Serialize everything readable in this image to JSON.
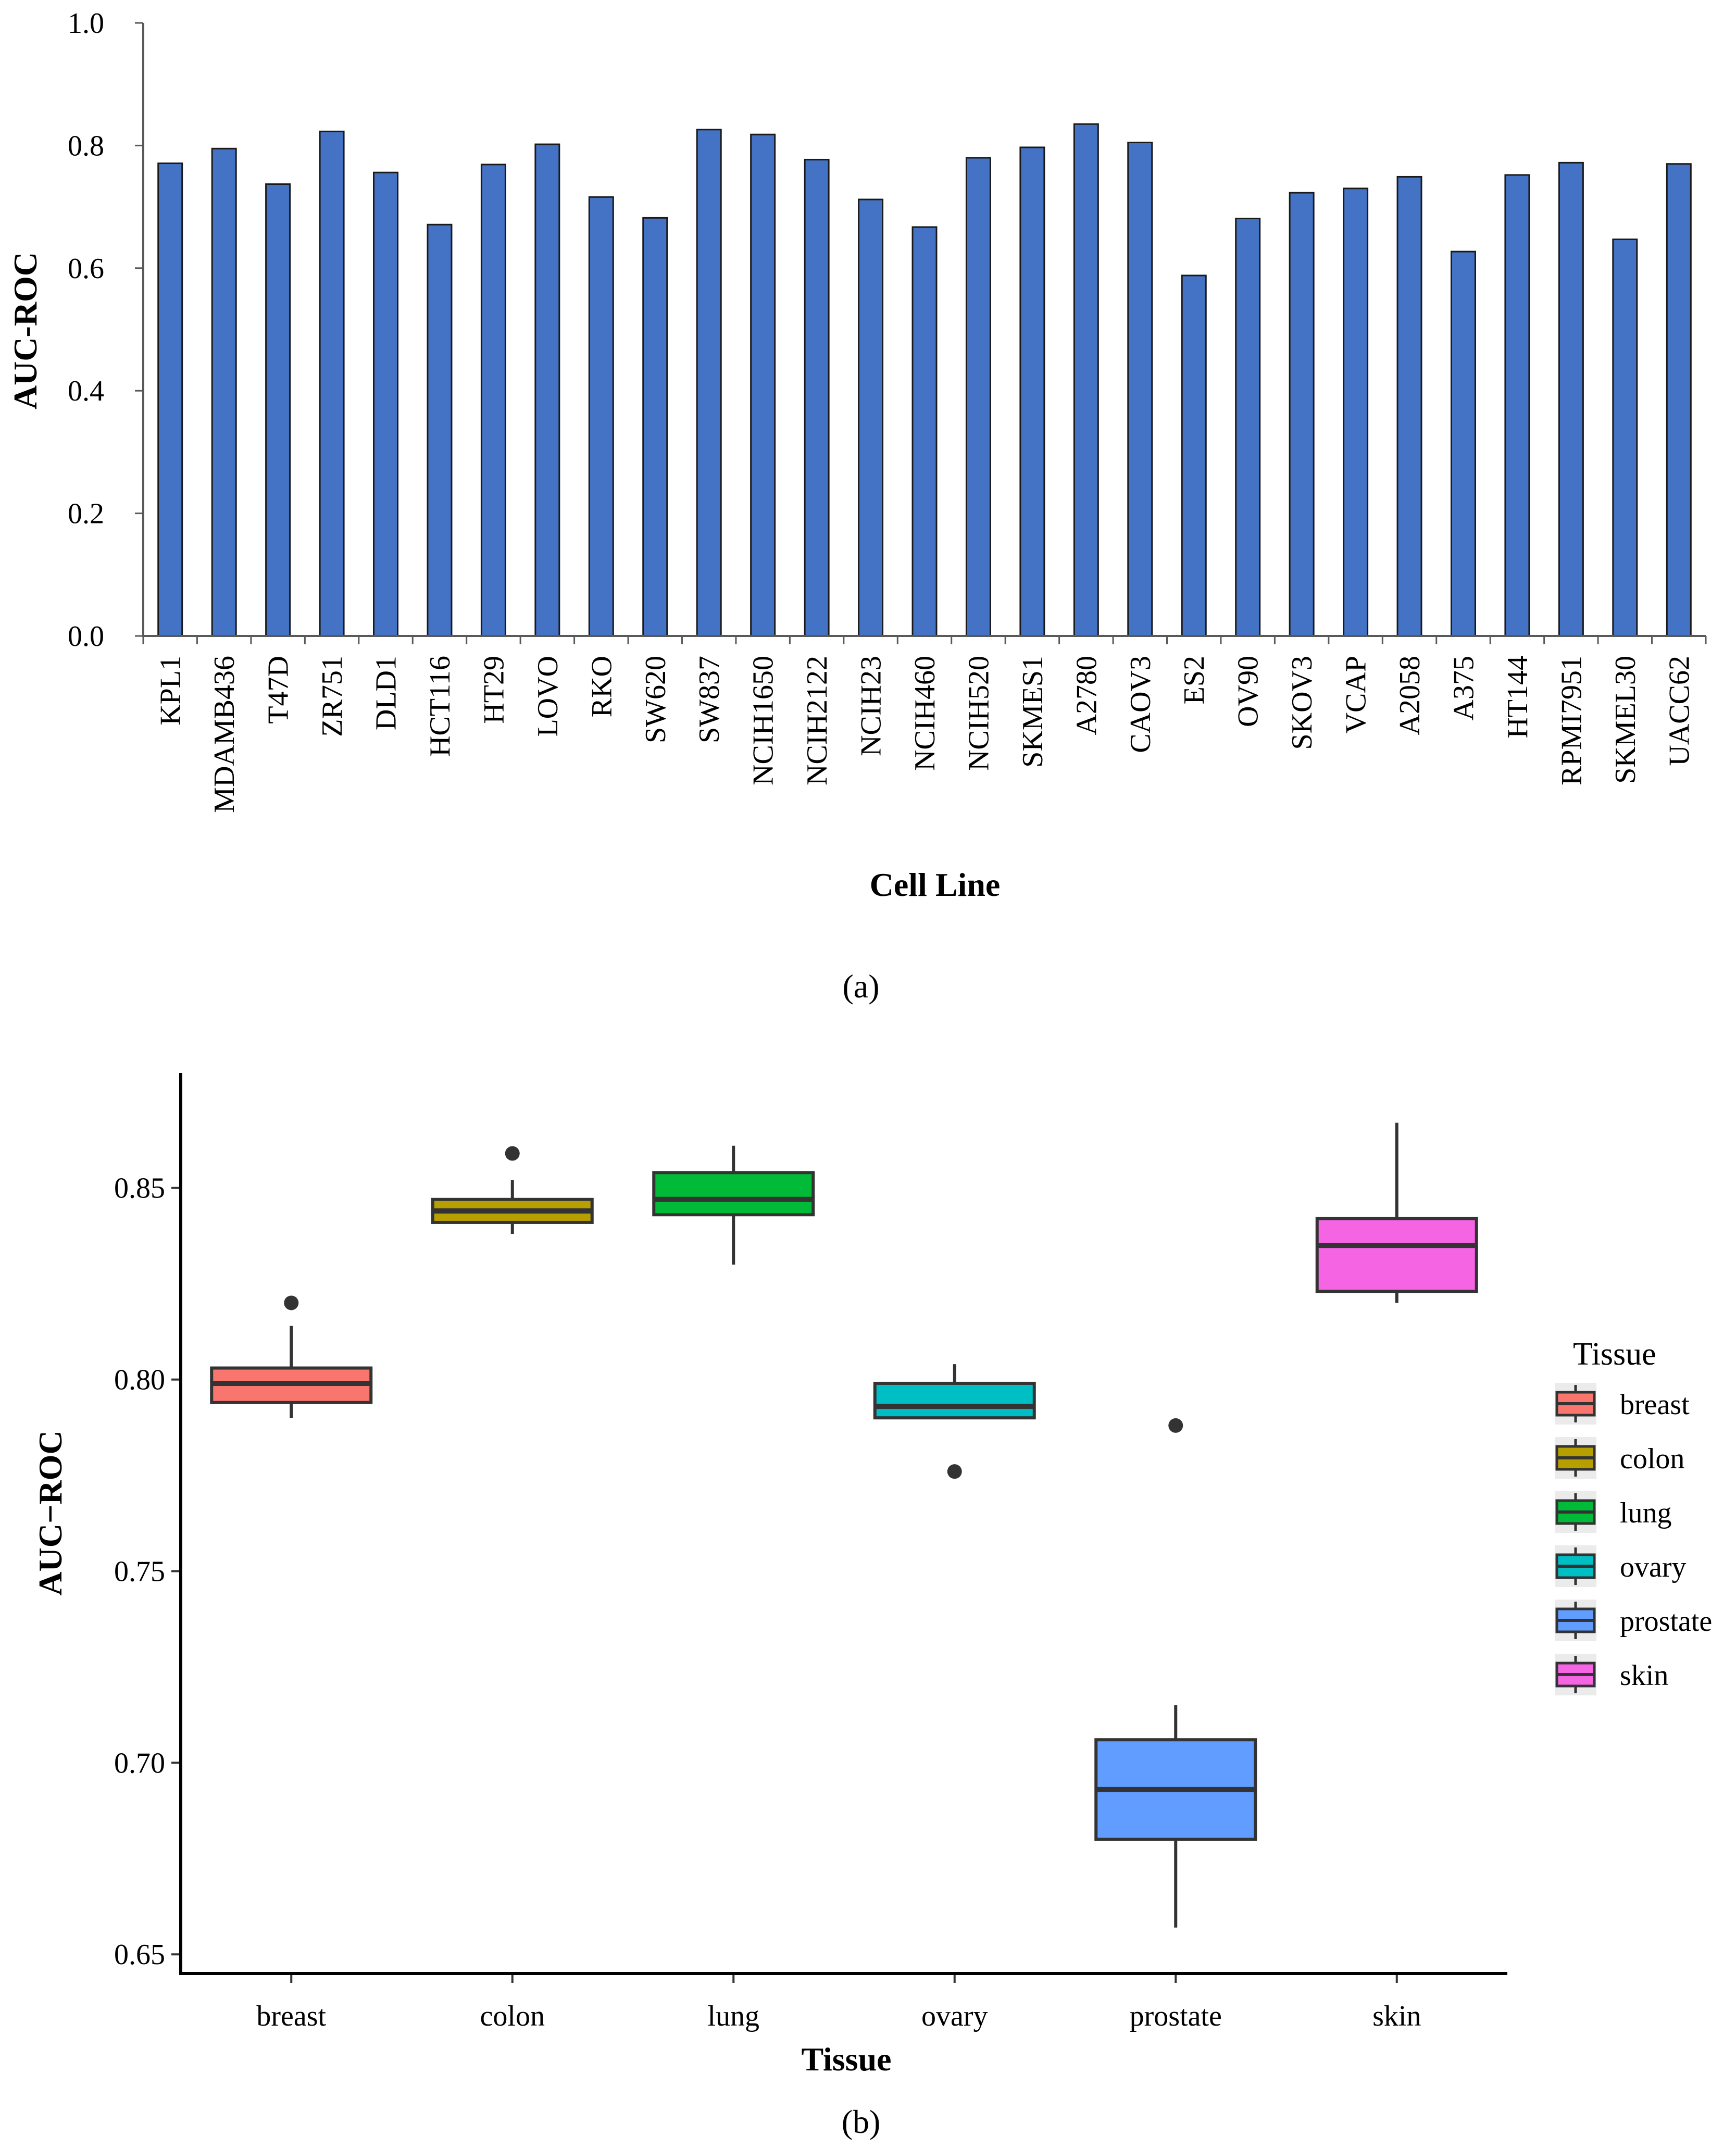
{
  "chart_data": [
    {
      "type": "bar",
      "panel_label": "(a)",
      "ylabel": "AUC-ROC",
      "xlabel": "Cell Line",
      "ylim": [
        0.0,
        1.0
      ],
      "yticks": [
        "0.0",
        "0.2",
        "0.4",
        "0.6",
        "0.8",
        "1.0"
      ],
      "bar_color": "#4472C4",
      "categories": [
        "KPL1",
        "MDAMB436",
        "T47D",
        "ZR751",
        "DLD1",
        "HCT116",
        "HT29",
        "LOVO",
        "RKO",
        "SW620",
        "SW837",
        "NCIH1650",
        "NCIH2122",
        "NCIH23",
        "NCIH460",
        "NCIH520",
        "SKMES1",
        "A2780",
        "CAOV3",
        "ES2",
        "OV90",
        "SKOV3",
        "VCAP",
        "A2058",
        "A375",
        "HT144",
        "RPMI7951",
        "SKMEL30",
        "UACC62"
      ],
      "values": [
        0.771,
        0.795,
        0.737,
        0.823,
        0.756,
        0.671,
        0.769,
        0.802,
        0.716,
        0.682,
        0.826,
        0.818,
        0.777,
        0.712,
        0.667,
        0.78,
        0.797,
        0.835,
        0.805,
        0.588,
        0.681,
        0.723,
        0.73,
        0.749,
        0.627,
        0.752,
        0.772,
        0.647,
        0.77
      ]
    },
    {
      "type": "box",
      "panel_label": "(b)",
      "ylabel": "AUC−ROC",
      "xlabel": "Tissue",
      "ylim": [
        0.645,
        0.88
      ],
      "yticks": [
        "0.65",
        "0.70",
        "0.75",
        "0.80",
        "0.85"
      ],
      "legend_title": "Tissue",
      "series": [
        {
          "name": "breast",
          "color": "#F8766D",
          "whisker_low": 0.79,
          "q1": 0.794,
          "median": 0.799,
          "q3": 0.803,
          "whisker_high": 0.814,
          "outliers": [
            0.82
          ]
        },
        {
          "name": "colon",
          "color": "#B79F00",
          "whisker_low": 0.838,
          "q1": 0.841,
          "median": 0.844,
          "q3": 0.847,
          "whisker_high": 0.852,
          "outliers": [
            0.859
          ]
        },
        {
          "name": "lung",
          "color": "#00BA38",
          "whisker_low": 0.83,
          "q1": 0.843,
          "median": 0.847,
          "q3": 0.854,
          "whisker_high": 0.861,
          "outliers": []
        },
        {
          "name": "ovary",
          "color": "#00BFC4",
          "whisker_low": 0.79,
          "q1": 0.79,
          "median": 0.793,
          "q3": 0.799,
          "whisker_high": 0.804,
          "outliers": [
            0.776
          ]
        },
        {
          "name": "prostate",
          "color": "#619CFF",
          "whisker_low": 0.657,
          "q1": 0.68,
          "median": 0.693,
          "q3": 0.706,
          "whisker_high": 0.715,
          "outliers": [
            0.788
          ]
        },
        {
          "name": "skin",
          "color": "#F564E3",
          "whisker_low": 0.82,
          "q1": 0.823,
          "median": 0.835,
          "q3": 0.842,
          "whisker_high": 0.867,
          "outliers": []
        }
      ]
    }
  ]
}
